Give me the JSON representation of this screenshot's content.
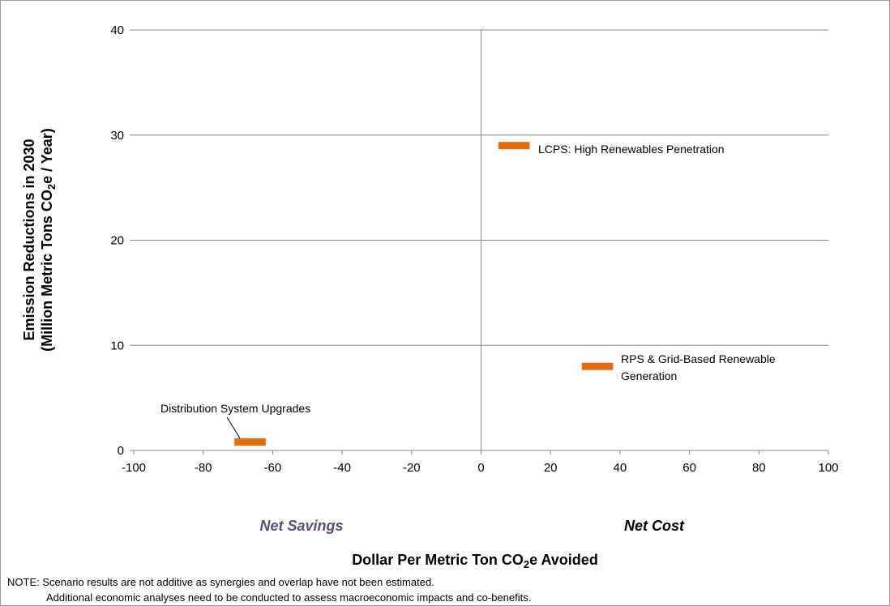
{
  "chart_data": {
    "type": "scatter",
    "xlabel_main": "Dollar Per Metric Ton CO",
    "xlabel_sub": "2",
    "xlabel_end": "e Avoided",
    "ylabel_line1": "Emission Reductions in 2030",
    "ylabel_line2_main": "(Million Metric Tons CO",
    "ylabel_line2_sub": "2",
    "ylabel_line2_end": "e / Year)",
    "xlim": [
      -100,
      100
    ],
    "ylim": [
      0,
      40
    ],
    "x_ticks": [
      -100,
      -80,
      -60,
      -40,
      -20,
      0,
      20,
      40,
      60,
      80,
      100
    ],
    "y_ticks": [
      0,
      10,
      20,
      30,
      40
    ],
    "grid": "horizontal",
    "region_labels": {
      "left": "Net Savings",
      "right": "Net Cost"
    },
    "points": [
      {
        "label": "Distribution System Upgrades",
        "x_min": -71,
        "x_max": -62,
        "y": 0.8
      },
      {
        "label": "LCPS: High Renewables Penetration",
        "x_min": 5,
        "x_max": 14,
        "y": 29
      },
      {
        "label_line1": "RPS & Grid-Based Renewable",
        "label_line2": "Generation",
        "x_min": 29,
        "x_max": 38,
        "y": 8
      }
    ],
    "colors": {
      "marker": "#e46c0a",
      "net_savings": "#604a7b",
      "grid": "#868686"
    }
  },
  "notes": {
    "line1": "NOTE: Scenario results are not additive as synergies and overlap have not been estimated.",
    "line2": "Additional economic analyses need to be conducted to assess macroeconomic impacts and co-benefits."
  }
}
